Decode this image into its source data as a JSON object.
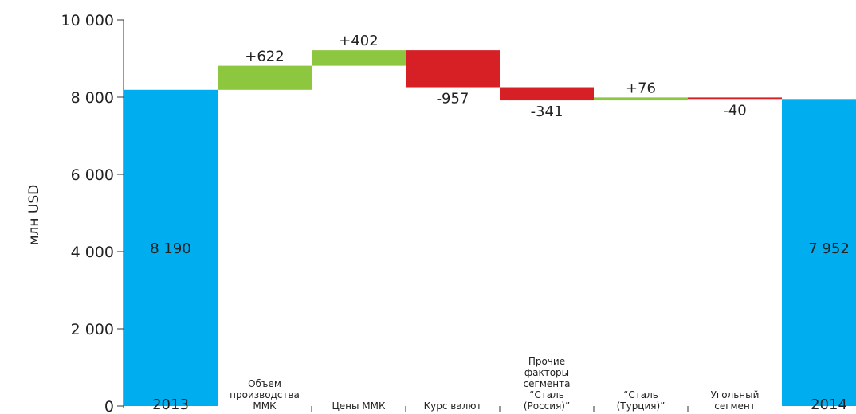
{
  "chart_data": {
    "type": "waterfall",
    "y_label": "млн USD",
    "categories": [
      [
        "2013"
      ],
      [
        "Объем",
        "производства",
        "ММК"
      ],
      [
        "Цены ММК"
      ],
      [
        "Курс валют"
      ],
      [
        "Прочие",
        "факторы",
        "сегмента",
        "“Сталь",
        "(Россия)”"
      ],
      [
        "“Сталь",
        "(Турция)”"
      ],
      [
        "Угольный",
        "сегмент"
      ],
      [
        "2014"
      ]
    ],
    "values": [
      8190,
      622,
      402,
      -957,
      -341,
      76,
      -40,
      7952
    ],
    "value_labels": [
      "8 190",
      "+622",
      "+402",
      "-957",
      "-341",
      "+76",
      "-40",
      "7 952"
    ],
    "total_color": "#00aeef",
    "increase_color": "#8dc63f",
    "decrease_color": "#d71f26",
    "ylim": [
      0,
      10000
    ],
    "yticks": [
      0,
      {
        "value": 2000,
        "label": "2 000"
      },
      {
        "value": 4000,
        "label": "4 000"
      },
      {
        "value": 6000,
        "label": "6 000"
      },
      {
        "value": 8000,
        "label": "8 000"
      },
      {
        "value": 10000,
        "label": "10 000"
      }
    ],
    "grid": false
  }
}
